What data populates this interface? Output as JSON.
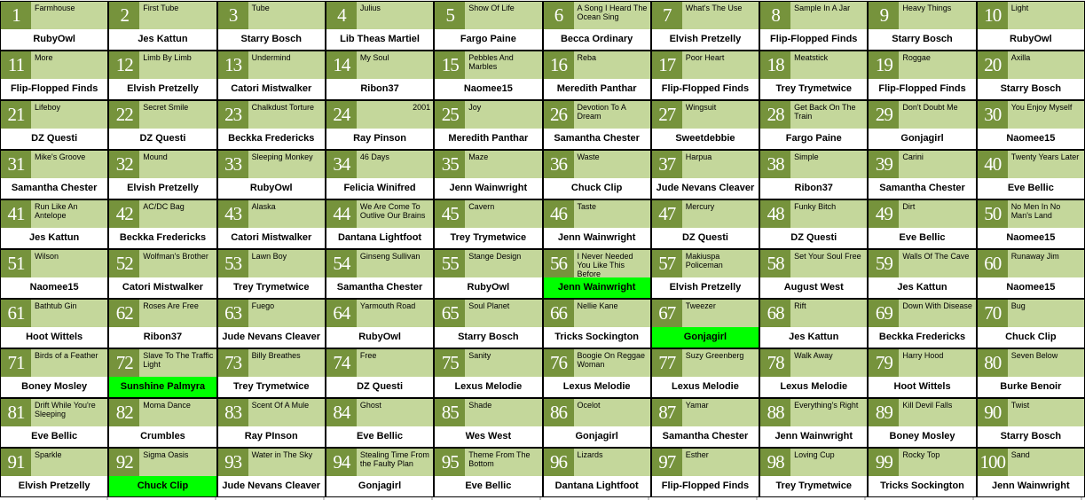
{
  "grid": {
    "columns": 10,
    "rows": 10,
    "colors": {
      "number_box": "#76933c",
      "title_bg": "#c4d79b",
      "artist_bg": "#ffffff",
      "highlight_bg": "#00ff00",
      "border": "#000000",
      "number_text": "#ffffff",
      "text": "#000000"
    },
    "cells": [
      {
        "number": "1",
        "title": "Farmhouse",
        "artist": "RubyOwl"
      },
      {
        "number": "2",
        "title": "First Tube",
        "artist": "Jes Kattun"
      },
      {
        "number": "3",
        "title": "Tube",
        "artist": "Starry Bosch"
      },
      {
        "number": "4",
        "title": "Julius",
        "artist": "Lib Theas Martiel"
      },
      {
        "number": "5",
        "title": "Show Of Life",
        "artist": "Fargo Paine"
      },
      {
        "number": "6",
        "title": "A Song I Heard The Ocean Sing",
        "artist": "Becca Ordinary"
      },
      {
        "number": "7",
        "title": "What's The Use",
        "artist": "Elvish Pretzelly"
      },
      {
        "number": "8",
        "title": "Sample In A Jar",
        "artist": "Flip-Flopped Finds"
      },
      {
        "number": "9",
        "title": "Heavy Things",
        "artist": "Starry Bosch"
      },
      {
        "number": "10",
        "title": "Light",
        "artist": "RubyOwl"
      },
      {
        "number": "11",
        "title": "More",
        "artist": "Flip-Flopped Finds"
      },
      {
        "number": "12",
        "title": "Limb By Limb",
        "artist": "Elvish Pretzelly"
      },
      {
        "number": "13",
        "title": "Undermind",
        "artist": "Catori Mistwalker"
      },
      {
        "number": "14",
        "title": "My Soul",
        "artist": "Ribon37"
      },
      {
        "number": "15",
        "title": "Pebbles And Marbles",
        "artist": "Naomee15"
      },
      {
        "number": "16",
        "title": "Reba",
        "artist": "Meredith Panthar"
      },
      {
        "number": "17",
        "title": "Poor Heart",
        "artist": "Flip-Flopped Finds"
      },
      {
        "number": "18",
        "title": "Meatstick",
        "artist": "Trey Trymetwice"
      },
      {
        "number": "19",
        "title": "Roggae",
        "artist": "Flip-Flopped Finds"
      },
      {
        "number": "20",
        "title": "Axilla",
        "artist": "Starry Bosch"
      },
      {
        "number": "21",
        "title": "Lifeboy",
        "artist": "DZ Questi"
      },
      {
        "number": "22",
        "title": "Secret Smile",
        "artist": "DZ Questi"
      },
      {
        "number": "23",
        "title": "Chalkdust Torture",
        "artist": "Beckka Fredericks"
      },
      {
        "number": "24",
        "title": "2001",
        "artist": "Ray Pinson",
        "title_align": "right"
      },
      {
        "number": "25",
        "title": "Joy",
        "artist": "Meredith Panthar"
      },
      {
        "number": "26",
        "title": "Devotion To A Dream",
        "artist": "Samantha Chester"
      },
      {
        "number": "27",
        "title": "Wingsuit",
        "artist": "Sweetdebbie"
      },
      {
        "number": "28",
        "title": "Get Back On The Train",
        "artist": "Fargo Paine"
      },
      {
        "number": "29",
        "title": "Don't Doubt Me",
        "artist": "Gonjagirl"
      },
      {
        "number": "30",
        "title": "You Enjoy Myself",
        "artist": "Naomee15"
      },
      {
        "number": "31",
        "title": "Mike's Groove",
        "artist": "Samantha Chester"
      },
      {
        "number": "32",
        "title": "Mound",
        "artist": "Elvish Pretzelly"
      },
      {
        "number": "33",
        "title": "Sleeping Monkey",
        "artist": "RubyOwl"
      },
      {
        "number": "34",
        "title": "46 Days",
        "artist": "Felicia Winifred"
      },
      {
        "number": "35",
        "title": "Maze",
        "artist": "Jenn Wainwright"
      },
      {
        "number": "36",
        "title": "Waste",
        "artist": "Chuck Clip"
      },
      {
        "number": "37",
        "title": "Harpua",
        "artist": "Jude Nevans Cleaver"
      },
      {
        "number": "38",
        "title": "Simple",
        "artist": "Ribon37"
      },
      {
        "number": "39",
        "title": "Carini",
        "artist": "Samantha Chester"
      },
      {
        "number": "40",
        "title": "Twenty Years Later",
        "artist": "Eve Bellic"
      },
      {
        "number": "41",
        "title": "Run Like An Antelope",
        "artist": "Jes Kattun"
      },
      {
        "number": "42",
        "title": "AC/DC Bag",
        "artist": "Beckka Fredericks"
      },
      {
        "number": "43",
        "title": "Alaska",
        "artist": "Catori Mistwalker"
      },
      {
        "number": "44",
        "title": "We Are Come To Outlive Our Brains",
        "artist": "Dantana Lightfoot"
      },
      {
        "number": "45",
        "title": "Cavern",
        "artist": "Trey Trymetwice"
      },
      {
        "number": "46",
        "title": "Taste",
        "artist": "Jenn Wainwright"
      },
      {
        "number": "47",
        "title": "Mercury",
        "artist": "DZ Questi"
      },
      {
        "number": "48",
        "title": "Funky Bitch",
        "artist": "DZ Questi"
      },
      {
        "number": "49",
        "title": "Dirt",
        "artist": "Eve Bellic"
      },
      {
        "number": "50",
        "title": "No Men In No Man's Land",
        "artist": "Naomee15"
      },
      {
        "number": "51",
        "title": "Wilson",
        "artist": "Naomee15"
      },
      {
        "number": "52",
        "title": "Wolfman's Brother",
        "artist": "Catori Mistwalker"
      },
      {
        "number": "53",
        "title": "Lawn Boy",
        "artist": "Trey Trymetwice"
      },
      {
        "number": "54",
        "title": "Ginseng Sullivan",
        "artist": "Samantha Chester"
      },
      {
        "number": "55",
        "title": "Stange Design",
        "artist": "RubyOwl"
      },
      {
        "number": "56",
        "title": "I Never Needed You Like This Before",
        "artist": "Jenn Wainwright",
        "highlight": true
      },
      {
        "number": "57",
        "title": "Makiuspa Policeman",
        "artist": "Elvish Pretzelly"
      },
      {
        "number": "58",
        "title": "Set Your Soul Free",
        "artist": "August West"
      },
      {
        "number": "59",
        "title": "Walls Of The Cave",
        "artist": "Jes Kattun"
      },
      {
        "number": "60",
        "title": "Runaway Jim",
        "artist": "Naomee15"
      },
      {
        "number": "61",
        "title": "Bathtub Gin",
        "artist": "Hoot Wittels"
      },
      {
        "number": "62",
        "title": "Roses Are Free",
        "artist": "Ribon37"
      },
      {
        "number": "63",
        "title": "Fuego",
        "artist": "Jude Nevans Cleaver"
      },
      {
        "number": "64",
        "title": "Yarmouth Road",
        "artist": "RubyOwl"
      },
      {
        "number": "65",
        "title": "Soul Planet",
        "artist": "Starry Bosch"
      },
      {
        "number": "66",
        "title": "Nellie Kane",
        "artist": "Tricks Sockington"
      },
      {
        "number": "67",
        "title": "Tweezer",
        "artist": "Gonjagirl",
        "highlight": true
      },
      {
        "number": "68",
        "title": "Rift",
        "artist": "Jes Kattun"
      },
      {
        "number": "69",
        "title": "Down With Disease",
        "artist": "Beckka Fredericks"
      },
      {
        "number": "70",
        "title": "Bug",
        "artist": "Chuck Clip"
      },
      {
        "number": "71",
        "title": "Birds of a Feather",
        "artist": "Boney Mosley"
      },
      {
        "number": "72",
        "title": "Slave To The Traffic Light",
        "artist": "Sunshine Palmyra",
        "highlight": true
      },
      {
        "number": "73",
        "title": "Billy Breathes",
        "artist": "Trey Trymetwice"
      },
      {
        "number": "74",
        "title": "Free",
        "artist": "DZ Questi"
      },
      {
        "number": "75",
        "title": "Sanity",
        "artist": "Lexus Melodie"
      },
      {
        "number": "76",
        "title": "Boogie On Reggae Woman",
        "artist": "Lexus Melodie"
      },
      {
        "number": "77",
        "title": "Suzy Greenberg",
        "artist": "Lexus Melodie"
      },
      {
        "number": "78",
        "title": "Walk Away",
        "artist": "Lexus Melodie"
      },
      {
        "number": "79",
        "title": "Harry Hood",
        "artist": "Hoot Wittels"
      },
      {
        "number": "80",
        "title": "Seven Below",
        "artist": "Burke Benoir"
      },
      {
        "number": "81",
        "title": "Drift While You're Sleeping",
        "artist": "Eve Bellic"
      },
      {
        "number": "82",
        "title": "Moma Dance",
        "artist": "Crumbles"
      },
      {
        "number": "83",
        "title": "Scent Of A Mule",
        "artist": "Ray PInson"
      },
      {
        "number": "84",
        "title": "Ghost",
        "artist": "Eve Bellic"
      },
      {
        "number": "85",
        "title": "Shade",
        "artist": "Wes West"
      },
      {
        "number": "86",
        "title": "Ocelot",
        "artist": "Gonjagirl"
      },
      {
        "number": "87",
        "title": "Yamar",
        "artist": "Samantha Chester"
      },
      {
        "number": "88",
        "title": "Everything's Right",
        "artist": "Jenn Wainwright"
      },
      {
        "number": "89",
        "title": "Kill Devil Falls",
        "artist": "Boney Mosley"
      },
      {
        "number": "90",
        "title": "Twist",
        "artist": "Starry Bosch"
      },
      {
        "number": "91",
        "title": "Sparkle",
        "artist": "Elvish Pretzelly"
      },
      {
        "number": "92",
        "title": "Sigma Oasis",
        "artist": "Chuck Clip",
        "highlight": true
      },
      {
        "number": "93",
        "title": "Water in The Sky",
        "artist": "Jude Nevans Cleaver"
      },
      {
        "number": "94",
        "title": "Stealing Time From the Faulty Plan",
        "artist": "Gonjagirl"
      },
      {
        "number": "95",
        "title": "Theme From The Bottom",
        "artist": "Eve Bellic"
      },
      {
        "number": "96",
        "title": "Lizards",
        "artist": "Dantana Lightfoot"
      },
      {
        "number": "97",
        "title": "Esther",
        "artist": "Flip-Flopped Finds"
      },
      {
        "number": "98",
        "title": "Loving Cup",
        "artist": "Trey Trymetwice"
      },
      {
        "number": "99",
        "title": "Rocky Top",
        "artist": "Tricks Sockington"
      },
      {
        "number": "100",
        "title": "Sand",
        "artist": "Jenn Wainwright"
      }
    ]
  }
}
